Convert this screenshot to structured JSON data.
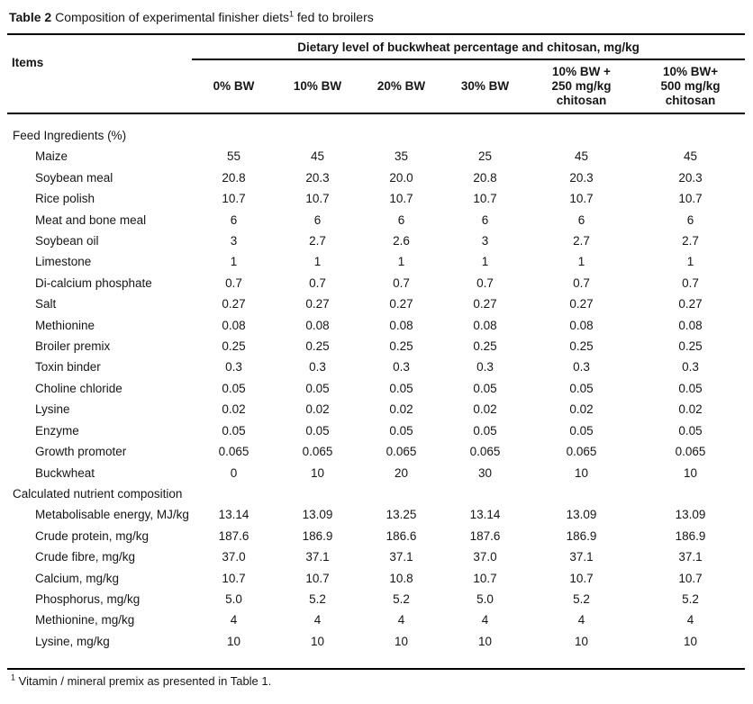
{
  "caption": {
    "label": "Table 2",
    "text": "Composition of experimental finisher diets",
    "superscript": "1",
    "suffix": "fed to broilers"
  },
  "table": {
    "items_header": "Items",
    "group_header": "Dietary level of buckwheat percentage and chitosan, mg/kg",
    "columns": [
      "0% BW",
      "10% BW",
      "20% BW",
      "30% BW",
      "10% BW +\n250 mg/kg\nchitosan",
      "10% BW+\n500 mg/kg\nchitosan"
    ],
    "sections": [
      {
        "label": "Feed Ingredients (%)",
        "rows": [
          {
            "item": "Maize",
            "values": [
              "55",
              "45",
              "35",
              "25",
              "45",
              "45"
            ]
          },
          {
            "item": "Soybean meal",
            "values": [
              "20.8",
              "20.3",
              "20.0",
              "20.8",
              "20.3",
              "20.3"
            ]
          },
          {
            "item": "Rice polish",
            "values": [
              "10.7",
              "10.7",
              "10.7",
              "10.7",
              "10.7",
              "10.7"
            ]
          },
          {
            "item": "Meat and bone meal",
            "values": [
              "6",
              "6",
              "6",
              "6",
              "6",
              "6"
            ]
          },
          {
            "item": "Soybean oil",
            "values": [
              "3",
              "2.7",
              "2.6",
              "3",
              "2.7",
              "2.7"
            ]
          },
          {
            "item": "Limestone",
            "values": [
              "1",
              "1",
              "1",
              "1",
              "1",
              "1"
            ]
          },
          {
            "item": "Di-calcium phosphate",
            "values": [
              "0.7",
              "0.7",
              "0.7",
              "0.7",
              "0.7",
              "0.7"
            ]
          },
          {
            "item": "Salt",
            "values": [
              "0.27",
              "0.27",
              "0.27",
              "0.27",
              "0.27",
              "0.27"
            ]
          },
          {
            "item": "Methionine",
            "values": [
              "0.08",
              "0.08",
              "0.08",
              "0.08",
              "0.08",
              "0.08"
            ]
          },
          {
            "item": "Broiler premix",
            "values": [
              "0.25",
              "0.25",
              "0.25",
              "0.25",
              "0.25",
              "0.25"
            ]
          },
          {
            "item": "Toxin binder",
            "values": [
              "0.3",
              "0.3",
              "0.3",
              "0.3",
              "0.3",
              "0.3"
            ]
          },
          {
            "item": "Choline chloride",
            "values": [
              "0.05",
              "0.05",
              "0.05",
              "0.05",
              "0.05",
              "0.05"
            ]
          },
          {
            "item": "Lysine",
            "values": [
              "0.02",
              "0.02",
              "0.02",
              "0.02",
              "0.02",
              "0.02"
            ]
          },
          {
            "item": "Enzyme",
            "values": [
              "0.05",
              "0.05",
              "0.05",
              "0.05",
              "0.05",
              "0.05"
            ]
          },
          {
            "item": "Growth promoter",
            "values": [
              "0.065",
              "0.065",
              "0.065",
              "0.065",
              "0.065",
              "0.065"
            ]
          },
          {
            "item": "Buckwheat",
            "values": [
              "0",
              "10",
              "20",
              "30",
              "10",
              "10"
            ]
          }
        ]
      },
      {
        "label": "Calculated nutrient composition",
        "rows": [
          {
            "item": "Metabolisable energy, MJ/kg",
            "values": [
              "13.14",
              "13.09",
              "13.25",
              "13.14",
              "13.09",
              "13.09"
            ]
          },
          {
            "item": "Crude protein, mg/kg",
            "values": [
              "187.6",
              "186.9",
              "186.6",
              "187.6",
              "186.9",
              "186.9"
            ]
          },
          {
            "item": "Crude fibre, mg/kg",
            "values": [
              "37.0",
              "37.1",
              "37.1",
              "37.0",
              "37.1",
              "37.1"
            ]
          },
          {
            "item": "Calcium, mg/kg",
            "values": [
              "10.7",
              "10.7",
              "10.8",
              "10.7",
              "10.7",
              "10.7"
            ]
          },
          {
            "item": "Phosphorus, mg/kg",
            "values": [
              "5.0",
              "5.2",
              "5.2",
              "5.0",
              "5.2",
              "5.2"
            ]
          },
          {
            "item": "Methionine, mg/kg",
            "values": [
              "4",
              "4",
              "4",
              "4",
              "4",
              "4"
            ]
          },
          {
            "item": "Lysine, mg/kg",
            "values": [
              "10",
              "10",
              "10",
              "10",
              "10",
              "10"
            ]
          }
        ]
      }
    ]
  },
  "footnote": {
    "superscript": "1",
    "text": "Vitamin / mineral premix as presented in Table 1."
  }
}
